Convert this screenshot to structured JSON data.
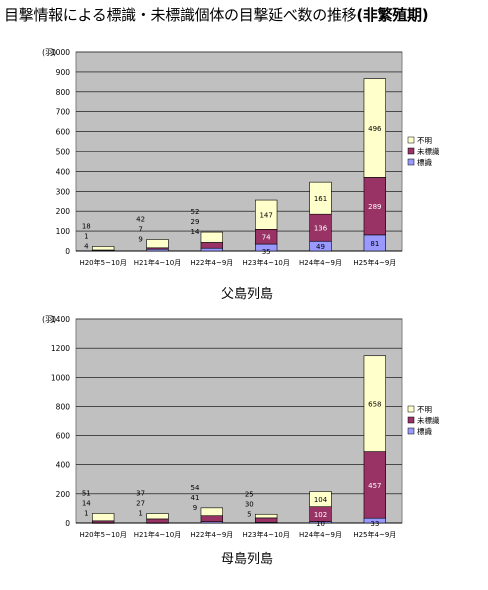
{
  "title": {
    "main": "目撃情報による標識・未標識個体の目撃延べ数の推移",
    "suffix": "(非繁殖期)"
  },
  "legend_labels": [
    "不明",
    "未標識",
    "標識"
  ],
  "colors": {
    "unknown": "#FFFFCC",
    "untagged": "#993366",
    "tagged": "#9999FF",
    "plot_bg": "#C0C0C0",
    "grid": "#000000"
  },
  "chart_data": [
    {
      "type": "bar",
      "stacked": true,
      "caption": "父島列島",
      "ylabel": "(羽)",
      "ylim": [
        0,
        1000
      ],
      "yticks": [
        0,
        100,
        200,
        300,
        400,
        500,
        600,
        700,
        800,
        900,
        1000
      ],
      "categories": [
        "H20年5~10月",
        "H21年4~10月",
        "H22年4~9月",
        "H23年4~10月",
        "H24年4~9月",
        "H25年4~9月"
      ],
      "legend_position": "right",
      "series": [
        {
          "name": "標識",
          "key": "tagged",
          "values": [
            4,
            9,
            14,
            35,
            49,
            81
          ]
        },
        {
          "name": "未標識",
          "key": "untagged",
          "values": [
            1,
            7,
            29,
            74,
            136,
            289
          ]
        },
        {
          "name": "不明",
          "key": "unknown",
          "values": [
            18,
            42,
            52,
            147,
            161,
            496
          ]
        }
      ],
      "value_labels": [
        {
          "tagged": "4",
          "untagged": "1",
          "unknown": "18"
        },
        {
          "tagged": "9",
          "untagged": "7",
          "unknown": "42"
        },
        {
          "tagged": "14",
          "untagged": "29",
          "unknown": "52"
        },
        {
          "tagged": "35",
          "untagged": "74",
          "unknown": "147"
        },
        {
          "tagged": "49",
          "untagged": "136",
          "unknown": "161"
        },
        {
          "tagged": "81",
          "untagged": "289",
          "unknown": "496"
        }
      ]
    },
    {
      "type": "bar",
      "stacked": true,
      "caption": "母島列島",
      "ylabel": "(羽)",
      "ylim": [
        0,
        1400
      ],
      "yticks": [
        0,
        200,
        400,
        600,
        800,
        1000,
        1200,
        1400
      ],
      "categories": [
        "H20年5~10月",
        "H21年4~10月",
        "H22年4~9月",
        "H23年4~10月",
        "H24年4~9月",
        "H25年4~9月"
      ],
      "legend_position": "right",
      "series": [
        {
          "name": "標識",
          "key": "tagged",
          "values": [
            1,
            1,
            9,
            5,
            10,
            33
          ]
        },
        {
          "name": "未標識",
          "key": "untagged",
          "values": [
            14,
            27,
            41,
            30,
            102,
            457
          ]
        },
        {
          "name": "不明",
          "key": "unknown",
          "values": [
            51,
            37,
            54,
            25,
            104,
            658
          ]
        }
      ],
      "value_labels": [
        {
          "tagged": "1",
          "untagged": "14",
          "unknown": "51"
        },
        {
          "tagged": "1",
          "untagged": "27",
          "unknown": "37"
        },
        {
          "tagged": "9",
          "untagged": "41",
          "unknown": "54"
        },
        {
          "tagged": "5",
          "untagged": "30",
          "unknown": "25"
        },
        {
          "tagged": "10",
          "untagged": "102",
          "unknown": "104"
        },
        {
          "tagged": "33",
          "untagged": "457",
          "unknown": "658"
        }
      ]
    }
  ]
}
